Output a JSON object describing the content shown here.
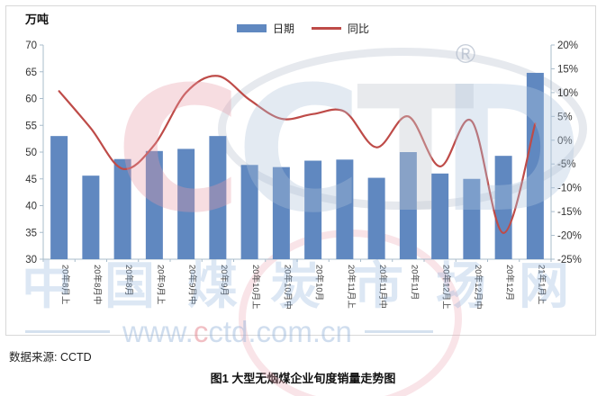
{
  "unit_label": "万吨",
  "legend": {
    "bar_label": "日期",
    "line_label": "同比"
  },
  "source_note": "数据来源: CCTD",
  "caption": "图1 大型无烟煤企业旬度销量走势图",
  "watermark": {
    "logo_letters": [
      "C",
      "C",
      "T",
      "D"
    ],
    "registered_mark": "®",
    "site_name": "中国煤炭市场网",
    "site_url_parts": [
      "www.",
      "c",
      "ctd.com.cn"
    ]
  },
  "colors": {
    "bar": "#6088C0",
    "line": "#BE4B48",
    "axis": "#A9BCCB",
    "tick_text": "#333333",
    "xlabel_text": "#404040"
  },
  "chart_data": {
    "type": "bar+line combo",
    "title": "",
    "legend_position": "top",
    "grid": false,
    "categories": [
      "20年8月上",
      "20年8月中",
      "20年8月",
      "20年9月上",
      "20年9月中",
      "20年9月",
      "20年10月上",
      "20年10月中",
      "20年10月",
      "20年11月上",
      "20年11月中",
      "20年11月",
      "20年12月上",
      "20年12月中",
      "20年12月",
      "21年1月上"
    ],
    "series": [
      {
        "name": "日期",
        "type": "bar",
        "axis": "left",
        "unit": "万吨",
        "values": [
          53,
          45.6,
          48.7,
          50.2,
          50.6,
          53,
          47.6,
          47.2,
          48.4,
          48.6,
          45.2,
          50,
          46,
          45,
          49.3,
          64.8
        ]
      },
      {
        "name": "同比",
        "type": "line",
        "axis": "right",
        "unit": "%",
        "values": [
          10.3,
          2.5,
          -6,
          -1,
          10,
          13.5,
          8.5,
          4.5,
          5.5,
          6,
          -1.5,
          5,
          -5.5,
          4,
          -19.5,
          3.5
        ]
      }
    ],
    "left_axis": {
      "label": "万吨",
      "min": 30,
      "max": 70,
      "step": 5,
      "ticks": [
        70,
        65,
        60,
        55,
        50,
        45,
        40,
        35,
        30
      ]
    },
    "right_axis": {
      "label": "%",
      "min": -25,
      "max": 20,
      "step": 5,
      "ticks": [
        "20%",
        "15%",
        "10%",
        "5%",
        "0%",
        "-5%",
        "-10%",
        "-15%",
        "-20%",
        "-25%"
      ]
    }
  }
}
